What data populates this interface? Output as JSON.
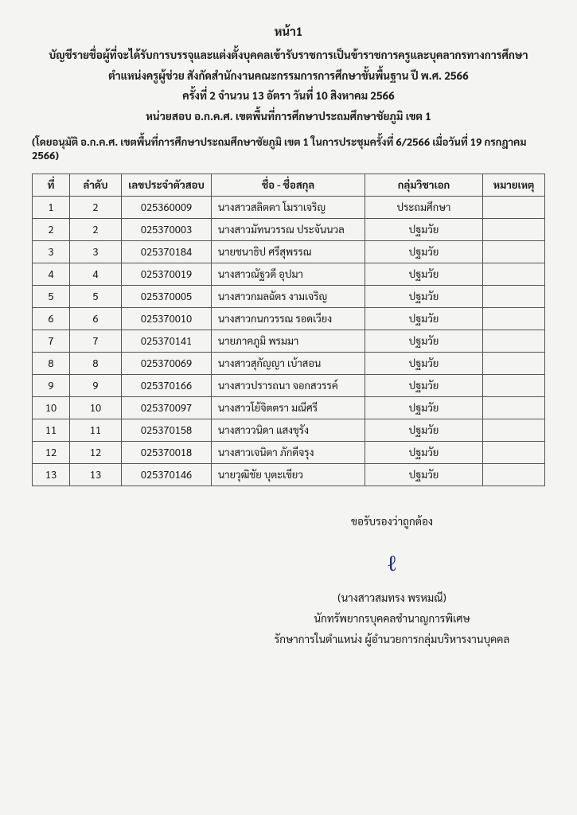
{
  "page_label": "หน้า1",
  "header": {
    "line1": "บัญชีรายชื่อผู้ที่จะได้รับการบรรจุและแต่งตั้งบุคคลเข้ารับราชการเป็นข้าราชการครูและบุคลากรทางการศึกษา",
    "line2": "ตำแหน่งครูผู้ช่วย สังกัดสำนักงานคณะกรรมการการศึกษาขั้นพื้นฐาน ปี พ.ศ. 2566",
    "line3": "ครั้งที่ 2 จำนวน 13 อัตรา  วันที่ 10 สิงหาคม 2566",
    "line4": "หน่วยสอบ อ.ก.ค.ศ. เขตพื้นที่การศึกษาประถมศึกษาชัยภูมิ เขต 1"
  },
  "approval": "(โดยอนุมัติ อ.ก.ค.ศ. เขตพื้นที่การศึกษาประถมศึกษาชัยภูมิ เขต 1 ในการประชุมครั้งที่ 6/2566 เมื่อวันที่ 19 กรกฎาคม 2566)",
  "columns": {
    "no": "ที่",
    "rank": "ลำดับ",
    "id": "เลขประจำตัวสอบ",
    "name": "ชื่อ - ชื่อสกุล",
    "subject": "กลุ่มวิชาเอก",
    "note": "หมายเหตุ"
  },
  "rows": [
    {
      "no": 1,
      "rank": 2,
      "id": "025360009",
      "name": "นางสาวสลิตตา  โมราเจริญ",
      "subject": "ประถมศึกษา",
      "note": "",
      "dashed": true
    },
    {
      "no": 2,
      "rank": 2,
      "id": "025370003",
      "name": "นางสาวมัทนวรรณ  ประจันนวล",
      "subject": "ปฐมวัย",
      "note": ""
    },
    {
      "no": 3,
      "rank": 3,
      "id": "025370184",
      "name": "นายชนาธิป  ศรีสุพรรณ",
      "subject": "ปฐมวัย",
      "note": ""
    },
    {
      "no": 4,
      "rank": 4,
      "id": "025370019",
      "name": "นางสาวณัฐวดี  อุปมา",
      "subject": "ปฐมวัย",
      "note": ""
    },
    {
      "no": 5,
      "rank": 5,
      "id": "025370005",
      "name": "นางสาวกมลฉัตร  งามเจริญ",
      "subject": "ปฐมวัย",
      "note": ""
    },
    {
      "no": 6,
      "rank": 6,
      "id": "025370010",
      "name": "นางสาวกนกวรรณ  รอดเวียง",
      "subject": "ปฐมวัย",
      "note": ""
    },
    {
      "no": 7,
      "rank": 7,
      "id": "025370141",
      "name": "นายภาคภูมิ  พรมมา",
      "subject": "ปฐมวัย",
      "note": ""
    },
    {
      "no": 8,
      "rank": 8,
      "id": "025370069",
      "name": "นางสาวสุกัญญา  เบ้าสอน",
      "subject": "ปฐมวัย",
      "note": ""
    },
    {
      "no": 9,
      "rank": 9,
      "id": "025370166",
      "name": "นางสาวปรารถนา  จอกสวรรค์",
      "subject": "ปฐมวัย",
      "note": ""
    },
    {
      "no": 10,
      "rank": 10,
      "id": "025370097",
      "name": "นางสาวโย้จิตตรา  มณีศรี",
      "subject": "ปฐมวัย",
      "note": ""
    },
    {
      "no": 11,
      "rank": 11,
      "id": "025370158",
      "name": "นางสาววนิดา  แสงขุรัง",
      "subject": "ปฐมวัย",
      "note": ""
    },
    {
      "no": 12,
      "rank": 12,
      "id": "025370018",
      "name": "นางสาวเจนิตา  ภักดีจรุง",
      "subject": "ปฐมวัย",
      "note": ""
    },
    {
      "no": 13,
      "rank": 13,
      "id": "025370146",
      "name": "นายวุฒิชัย  บุตะเขียว",
      "subject": "ปฐมวัย",
      "note": ""
    }
  ],
  "certify": {
    "line1": "ขอรับรองว่าถูกต้อง",
    "name_paren": "(นางสาวสมทรง  พรหมณี)",
    "title": "นักทรัพยากรบุคคลชำนาญการพิเศษ",
    "acting": "รักษาการในตำแหน่ง ผู้อำนวยการกลุ่มบริหารงานบุคคล"
  }
}
